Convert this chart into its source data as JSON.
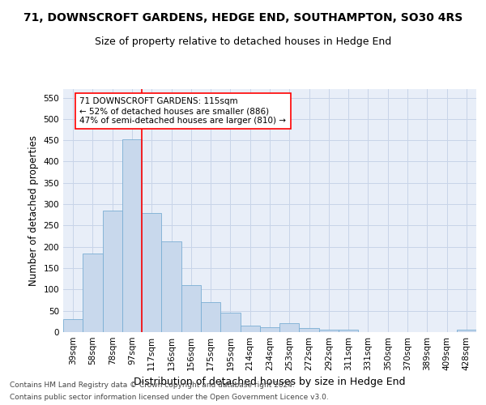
{
  "title": "71, DOWNSCROFT GARDENS, HEDGE END, SOUTHAMPTON, SO30 4RS",
  "subtitle": "Size of property relative to detached houses in Hedge End",
  "xlabel": "Distribution of detached houses by size in Hedge End",
  "ylabel": "Number of detached properties",
  "bar_values": [
    30,
    185,
    285,
    453,
    280,
    212,
    110,
    70,
    45,
    15,
    11,
    20,
    10,
    5,
    5,
    0,
    0,
    0,
    0,
    0,
    5
  ],
  "categories": [
    "39sqm",
    "58sqm",
    "78sqm",
    "97sqm",
    "117sqm",
    "136sqm",
    "156sqm",
    "175sqm",
    "195sqm",
    "214sqm",
    "234sqm",
    "253sqm",
    "272sqm",
    "292sqm",
    "311sqm",
    "331sqm",
    "350sqm",
    "370sqm",
    "389sqm",
    "409sqm",
    "428sqm"
  ],
  "bar_color": "#c8d8ec",
  "bar_edge_color": "#7aaed4",
  "bar_edge_width": 0.6,
  "vline_color": "red",
  "vline_linewidth": 1.2,
  "vline_xindex": 4,
  "annotation_line1": "71 DOWNSCROFT GARDENS: 115sqm",
  "annotation_line2": "← 52% of detached houses are smaller (886)",
  "annotation_line3": "47% of semi-detached houses are larger (810) →",
  "annotation_box_color": "white",
  "annotation_box_edge": "red",
  "ylim": [
    0,
    570
  ],
  "yticks": [
    0,
    50,
    100,
    150,
    200,
    250,
    300,
    350,
    400,
    450,
    500,
    550
  ],
  "grid_color": "#c8d4e8",
  "bg_color": "#e8eef8",
  "footer1": "Contains HM Land Registry data © Crown copyright and database right 2024.",
  "footer2": "Contains public sector information licensed under the Open Government Licence v3.0.",
  "title_fontsize": 10,
  "subtitle_fontsize": 9,
  "ylabel_fontsize": 8.5,
  "xlabel_fontsize": 9,
  "tick_fontsize": 7.5,
  "footer_fontsize": 6.5
}
